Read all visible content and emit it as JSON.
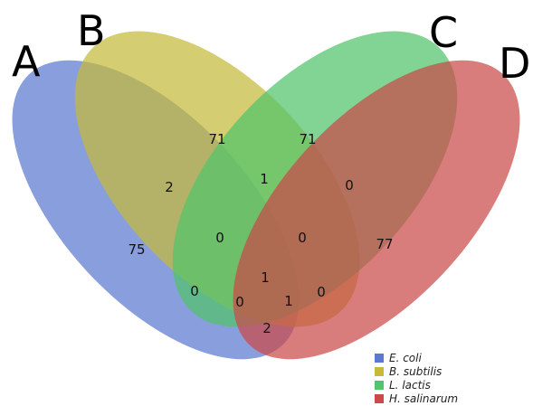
{
  "sets": [
    {
      "letter": "A",
      "species": "E. coli",
      "color": "#5b79d0"
    },
    {
      "letter": "B",
      "species": "B. subtilis",
      "color": "#c5ba3a"
    },
    {
      "letter": "C",
      "species": "L. lactis",
      "color": "#52c46b"
    },
    {
      "letter": "D",
      "species": "H. salinarum",
      "color": "#c94a4a"
    }
  ],
  "regions": {
    "A": "75",
    "B": "71",
    "C": "71",
    "D": "77",
    "AB": "2",
    "BC": "1",
    "CD": "0",
    "ABC": "0",
    "BCD": "0",
    "ABCD": "1",
    "AC": "0",
    "BD": "0",
    "ACD": "0",
    "ABD": "1",
    "AD": "2"
  }
}
